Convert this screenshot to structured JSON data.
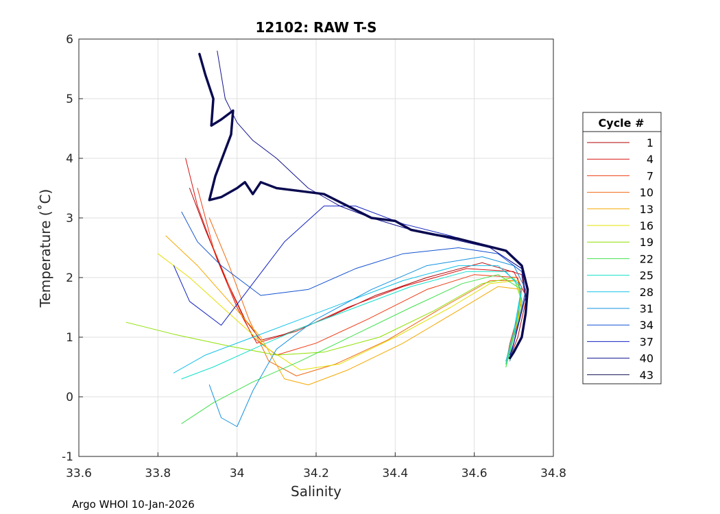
{
  "chart_data": {
    "type": "line",
    "title": "12102: RAW T-S",
    "xlabel": "Salinity",
    "ylabel": "Temperature (˚C)",
    "xlim": [
      33.6,
      34.8
    ],
    "ylim": [
      -1,
      6
    ],
    "xticks": [
      "33.6",
      "33.8",
      "34",
      "34.2",
      "34.4",
      "34.6",
      "34.8"
    ],
    "yticks": [
      "-1",
      "0",
      "1",
      "2",
      "3",
      "4",
      "5",
      "6"
    ],
    "grid": true,
    "legend_title": "Cycle #",
    "legend_position": "right",
    "legend": [
      {
        "label": "1",
        "color": "#b00000"
      },
      {
        "label": "4",
        "color": "#d81010"
      },
      {
        "label": "7",
        "color": "#ee3a10"
      },
      {
        "label": "10",
        "color": "#f06a10"
      },
      {
        "label": "13",
        "color": "#f5a800"
      },
      {
        "label": "16",
        "color": "#e3e000"
      },
      {
        "label": "19",
        "color": "#8ee000"
      },
      {
        "label": "22",
        "color": "#3fe04a"
      },
      {
        "label": "25",
        "color": "#10e0c8"
      },
      {
        "label": "28",
        "color": "#10c0e8"
      },
      {
        "label": "31",
        "color": "#1090e0"
      },
      {
        "label": "34",
        "color": "#1050d0"
      },
      {
        "label": "37",
        "color": "#1020c0"
      },
      {
        "label": "40",
        "color": "#101090"
      },
      {
        "label": "43",
        "color": "#0a0a50"
      }
    ],
    "series": [
      {
        "name": "1",
        "color": "#b00000",
        "points": [
          [
            33.88,
            3.5
          ],
          [
            33.92,
            2.8
          ],
          [
            33.97,
            2.0
          ],
          [
            34.02,
            1.3
          ],
          [
            34.06,
            0.95
          ],
          [
            34.12,
            1.05
          ],
          [
            34.22,
            1.3
          ],
          [
            34.35,
            1.7
          ],
          [
            34.48,
            2.0
          ],
          [
            34.62,
            2.25
          ],
          [
            34.72,
            2.05
          ],
          [
            34.73,
            1.6
          ],
          [
            34.71,
            1.0
          ],
          [
            34.69,
            0.65
          ]
        ]
      },
      {
        "name": "4",
        "color": "#d81010",
        "points": [
          [
            33.87,
            4.0
          ],
          [
            33.9,
            3.2
          ],
          [
            33.95,
            2.3
          ],
          [
            34.0,
            1.5
          ],
          [
            34.05,
            0.9
          ],
          [
            34.15,
            1.1
          ],
          [
            34.28,
            1.5
          ],
          [
            34.42,
            1.85
          ],
          [
            34.58,
            2.15
          ],
          [
            34.7,
            2.1
          ],
          [
            34.73,
            1.7
          ],
          [
            34.7,
            1.0
          ],
          [
            34.68,
            0.6
          ]
        ]
      },
      {
        "name": "7",
        "color": "#ee3a10",
        "points": [
          [
            33.9,
            3.5
          ],
          [
            33.94,
            2.5
          ],
          [
            33.99,
            1.7
          ],
          [
            34.04,
            1.0
          ],
          [
            34.1,
            0.7
          ],
          [
            34.2,
            0.9
          ],
          [
            34.33,
            1.3
          ],
          [
            34.48,
            1.8
          ],
          [
            34.6,
            2.05
          ],
          [
            34.71,
            2.0
          ],
          [
            34.72,
            1.6
          ],
          [
            34.69,
            0.9
          ],
          [
            34.68,
            0.55
          ]
        ]
      },
      {
        "name": "10",
        "color": "#f06a10",
        "points": [
          [
            33.93,
            3.0
          ],
          [
            33.98,
            2.2
          ],
          [
            34.03,
            1.3
          ],
          [
            34.08,
            0.6
          ],
          [
            34.15,
            0.35
          ],
          [
            34.25,
            0.55
          ],
          [
            34.38,
            0.95
          ],
          [
            34.52,
            1.5
          ],
          [
            34.64,
            1.95
          ],
          [
            34.71,
            1.95
          ],
          [
            34.72,
            1.5
          ],
          [
            34.69,
            0.85
          ],
          [
            34.68,
            0.55
          ]
        ]
      },
      {
        "name": "13",
        "color": "#f5a800",
        "points": [
          [
            33.82,
            2.7
          ],
          [
            33.9,
            2.2
          ],
          [
            33.98,
            1.6
          ],
          [
            34.06,
            1.0
          ],
          [
            34.12,
            0.3
          ],
          [
            34.18,
            0.2
          ],
          [
            34.28,
            0.45
          ],
          [
            34.42,
            0.9
          ],
          [
            34.56,
            1.45
          ],
          [
            34.66,
            1.85
          ],
          [
            34.72,
            1.8
          ],
          [
            34.71,
            1.2
          ],
          [
            34.69,
            0.6
          ]
        ]
      },
      {
        "name": "16",
        "color": "#e3e000",
        "points": [
          [
            33.8,
            2.4
          ],
          [
            33.88,
            2.0
          ],
          [
            33.98,
            1.4
          ],
          [
            34.08,
            0.8
          ],
          [
            34.16,
            0.45
          ],
          [
            34.26,
            0.55
          ],
          [
            34.4,
            1.0
          ],
          [
            34.54,
            1.5
          ],
          [
            34.64,
            1.9
          ],
          [
            34.71,
            1.95
          ],
          [
            34.72,
            1.5
          ],
          [
            34.69,
            0.8
          ],
          [
            34.68,
            0.55
          ]
        ]
      },
      {
        "name": "19",
        "color": "#8ee000",
        "points": [
          [
            33.72,
            1.25
          ],
          [
            33.84,
            1.05
          ],
          [
            33.98,
            0.85
          ],
          [
            34.1,
            0.7
          ],
          [
            34.22,
            0.75
          ],
          [
            34.36,
            1.0
          ],
          [
            34.5,
            1.45
          ],
          [
            34.62,
            1.9
          ],
          [
            34.7,
            2.0
          ],
          [
            34.72,
            1.6
          ],
          [
            34.69,
            0.8
          ],
          [
            34.68,
            0.5
          ]
        ]
      },
      {
        "name": "22",
        "color": "#3fe04a",
        "points": [
          [
            33.86,
            -0.45
          ],
          [
            33.94,
            -0.1
          ],
          [
            34.04,
            0.25
          ],
          [
            34.16,
            0.6
          ],
          [
            34.3,
            1.05
          ],
          [
            34.44,
            1.5
          ],
          [
            34.57,
            1.9
          ],
          [
            34.66,
            2.05
          ],
          [
            34.72,
            1.8
          ],
          [
            34.7,
            1.0
          ],
          [
            34.68,
            0.5
          ]
        ]
      },
      {
        "name": "25",
        "color": "#10e0c8",
        "points": [
          [
            33.86,
            0.3
          ],
          [
            33.94,
            0.5
          ],
          [
            34.04,
            0.8
          ],
          [
            34.16,
            1.15
          ],
          [
            34.3,
            1.5
          ],
          [
            34.44,
            1.85
          ],
          [
            34.58,
            2.1
          ],
          [
            34.68,
            2.1
          ],
          [
            34.72,
            1.8
          ],
          [
            34.7,
            1.0
          ],
          [
            34.68,
            0.55
          ]
        ]
      },
      {
        "name": "28",
        "color": "#10c0e8",
        "points": [
          [
            33.84,
            0.4
          ],
          [
            33.92,
            0.7
          ],
          [
            34.02,
            0.95
          ],
          [
            34.14,
            1.25
          ],
          [
            34.28,
            1.6
          ],
          [
            34.42,
            1.95
          ],
          [
            34.56,
            2.2
          ],
          [
            34.66,
            2.2
          ],
          [
            34.72,
            1.85
          ],
          [
            34.7,
            1.1
          ],
          [
            34.68,
            0.6
          ]
        ]
      },
      {
        "name": "31",
        "color": "#1090e0",
        "points": [
          [
            33.93,
            0.2
          ],
          [
            33.96,
            -0.35
          ],
          [
            34.0,
            -0.5
          ],
          [
            34.04,
            0.1
          ],
          [
            34.1,
            0.8
          ],
          [
            34.2,
            1.3
          ],
          [
            34.34,
            1.8
          ],
          [
            34.48,
            2.2
          ],
          [
            34.62,
            2.35
          ],
          [
            34.7,
            2.2
          ],
          [
            34.73,
            1.8
          ],
          [
            34.7,
            0.9
          ],
          [
            34.69,
            0.6
          ]
        ]
      },
      {
        "name": "34",
        "color": "#1050d0",
        "points": [
          [
            33.86,
            3.1
          ],
          [
            33.9,
            2.6
          ],
          [
            33.96,
            2.2
          ],
          [
            34.06,
            1.7
          ],
          [
            34.18,
            1.8
          ],
          [
            34.3,
            2.15
          ],
          [
            34.42,
            2.4
          ],
          [
            34.56,
            2.5
          ],
          [
            34.66,
            2.4
          ],
          [
            34.72,
            2.1
          ],
          [
            34.73,
            1.7
          ],
          [
            34.7,
            0.9
          ],
          [
            34.69,
            0.65
          ]
        ]
      },
      {
        "name": "37",
        "color": "#1020c0",
        "points": [
          [
            33.84,
            2.2
          ],
          [
            33.88,
            1.6
          ],
          [
            33.96,
            1.2
          ],
          [
            34.04,
            1.9
          ],
          [
            34.12,
            2.6
          ],
          [
            34.22,
            3.2
          ],
          [
            34.3,
            3.2
          ],
          [
            34.42,
            2.9
          ],
          [
            34.54,
            2.7
          ],
          [
            34.64,
            2.5
          ],
          [
            34.72,
            2.15
          ],
          [
            34.73,
            1.7
          ],
          [
            34.7,
            0.9
          ],
          [
            34.69,
            0.7
          ]
        ]
      },
      {
        "name": "40",
        "color": "#101090",
        "points": [
          [
            33.95,
            5.8
          ],
          [
            33.97,
            5.0
          ],
          [
            34.0,
            4.6
          ],
          [
            34.04,
            4.3
          ],
          [
            34.1,
            4.0
          ],
          [
            34.18,
            3.5
          ],
          [
            34.26,
            3.2
          ],
          [
            34.34,
            3.0
          ],
          [
            34.44,
            2.8
          ],
          [
            34.54,
            2.65
          ],
          [
            34.64,
            2.5
          ],
          [
            34.72,
            2.15
          ],
          [
            34.73,
            1.7
          ],
          [
            34.7,
            0.9
          ],
          [
            34.69,
            0.7
          ]
        ]
      },
      {
        "name": "43",
        "color": "#0a0a50",
        "bold": true,
        "points": [
          [
            33.905,
            5.75
          ],
          [
            33.92,
            5.4
          ],
          [
            33.94,
            5.0
          ],
          [
            33.935,
            4.55
          ],
          [
            33.96,
            4.65
          ],
          [
            33.99,
            4.8
          ],
          [
            33.985,
            4.4
          ],
          [
            33.965,
            4.05
          ],
          [
            33.945,
            3.7
          ],
          [
            33.93,
            3.3
          ],
          [
            33.96,
            3.35
          ],
          [
            34.0,
            3.5
          ],
          [
            34.02,
            3.6
          ],
          [
            34.04,
            3.4
          ],
          [
            34.06,
            3.6
          ],
          [
            34.1,
            3.5
          ],
          [
            34.16,
            3.45
          ],
          [
            34.22,
            3.4
          ],
          [
            34.28,
            3.2
          ],
          [
            34.34,
            3.0
          ],
          [
            34.4,
            2.95
          ],
          [
            34.44,
            2.8
          ],
          [
            34.5,
            2.72
          ],
          [
            34.56,
            2.65
          ],
          [
            34.62,
            2.55
          ],
          [
            34.68,
            2.45
          ],
          [
            34.72,
            2.2
          ],
          [
            34.735,
            1.8
          ],
          [
            34.73,
            1.4
          ],
          [
            34.72,
            1.0
          ],
          [
            34.7,
            0.75
          ],
          [
            34.69,
            0.65
          ]
        ]
      }
    ]
  },
  "footer": "Argo WHOI 10-Jan-2026"
}
